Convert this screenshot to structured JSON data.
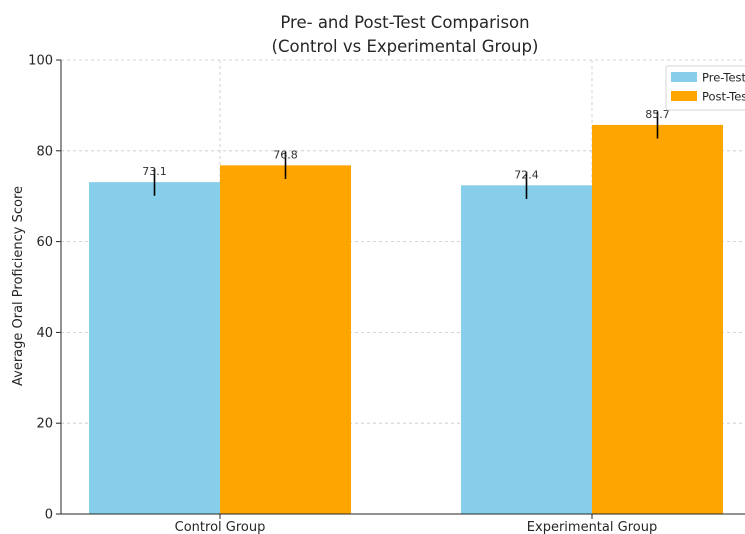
{
  "chart_data": {
    "type": "bar",
    "title_line1": "Pre- and Post-Test Comparison",
    "title_line2": "(Control vs Experimental Group)",
    "xlabel": "",
    "ylabel": "Average Oral Proficiency Score",
    "ylim": [
      0,
      100
    ],
    "yticks": [
      0,
      20,
      40,
      60,
      80,
      100
    ],
    "categories": [
      "Control Group",
      "Experimental Group"
    ],
    "series": [
      {
        "name": "Pre-Test",
        "color": "#87CEEB",
        "values": [
          73.1,
          72.4
        ],
        "labels": [
          "73.1",
          "72.4"
        ],
        "errors": [
          3.0,
          3.0
        ]
      },
      {
        "name": "Post-Test",
        "color": "#FFA500",
        "values": [
          76.8,
          85.7
        ],
        "labels": [
          "76.8",
          "85.7"
        ],
        "errors": [
          3.0,
          3.0
        ]
      }
    ],
    "grid": true,
    "legend_position": "top-right"
  }
}
